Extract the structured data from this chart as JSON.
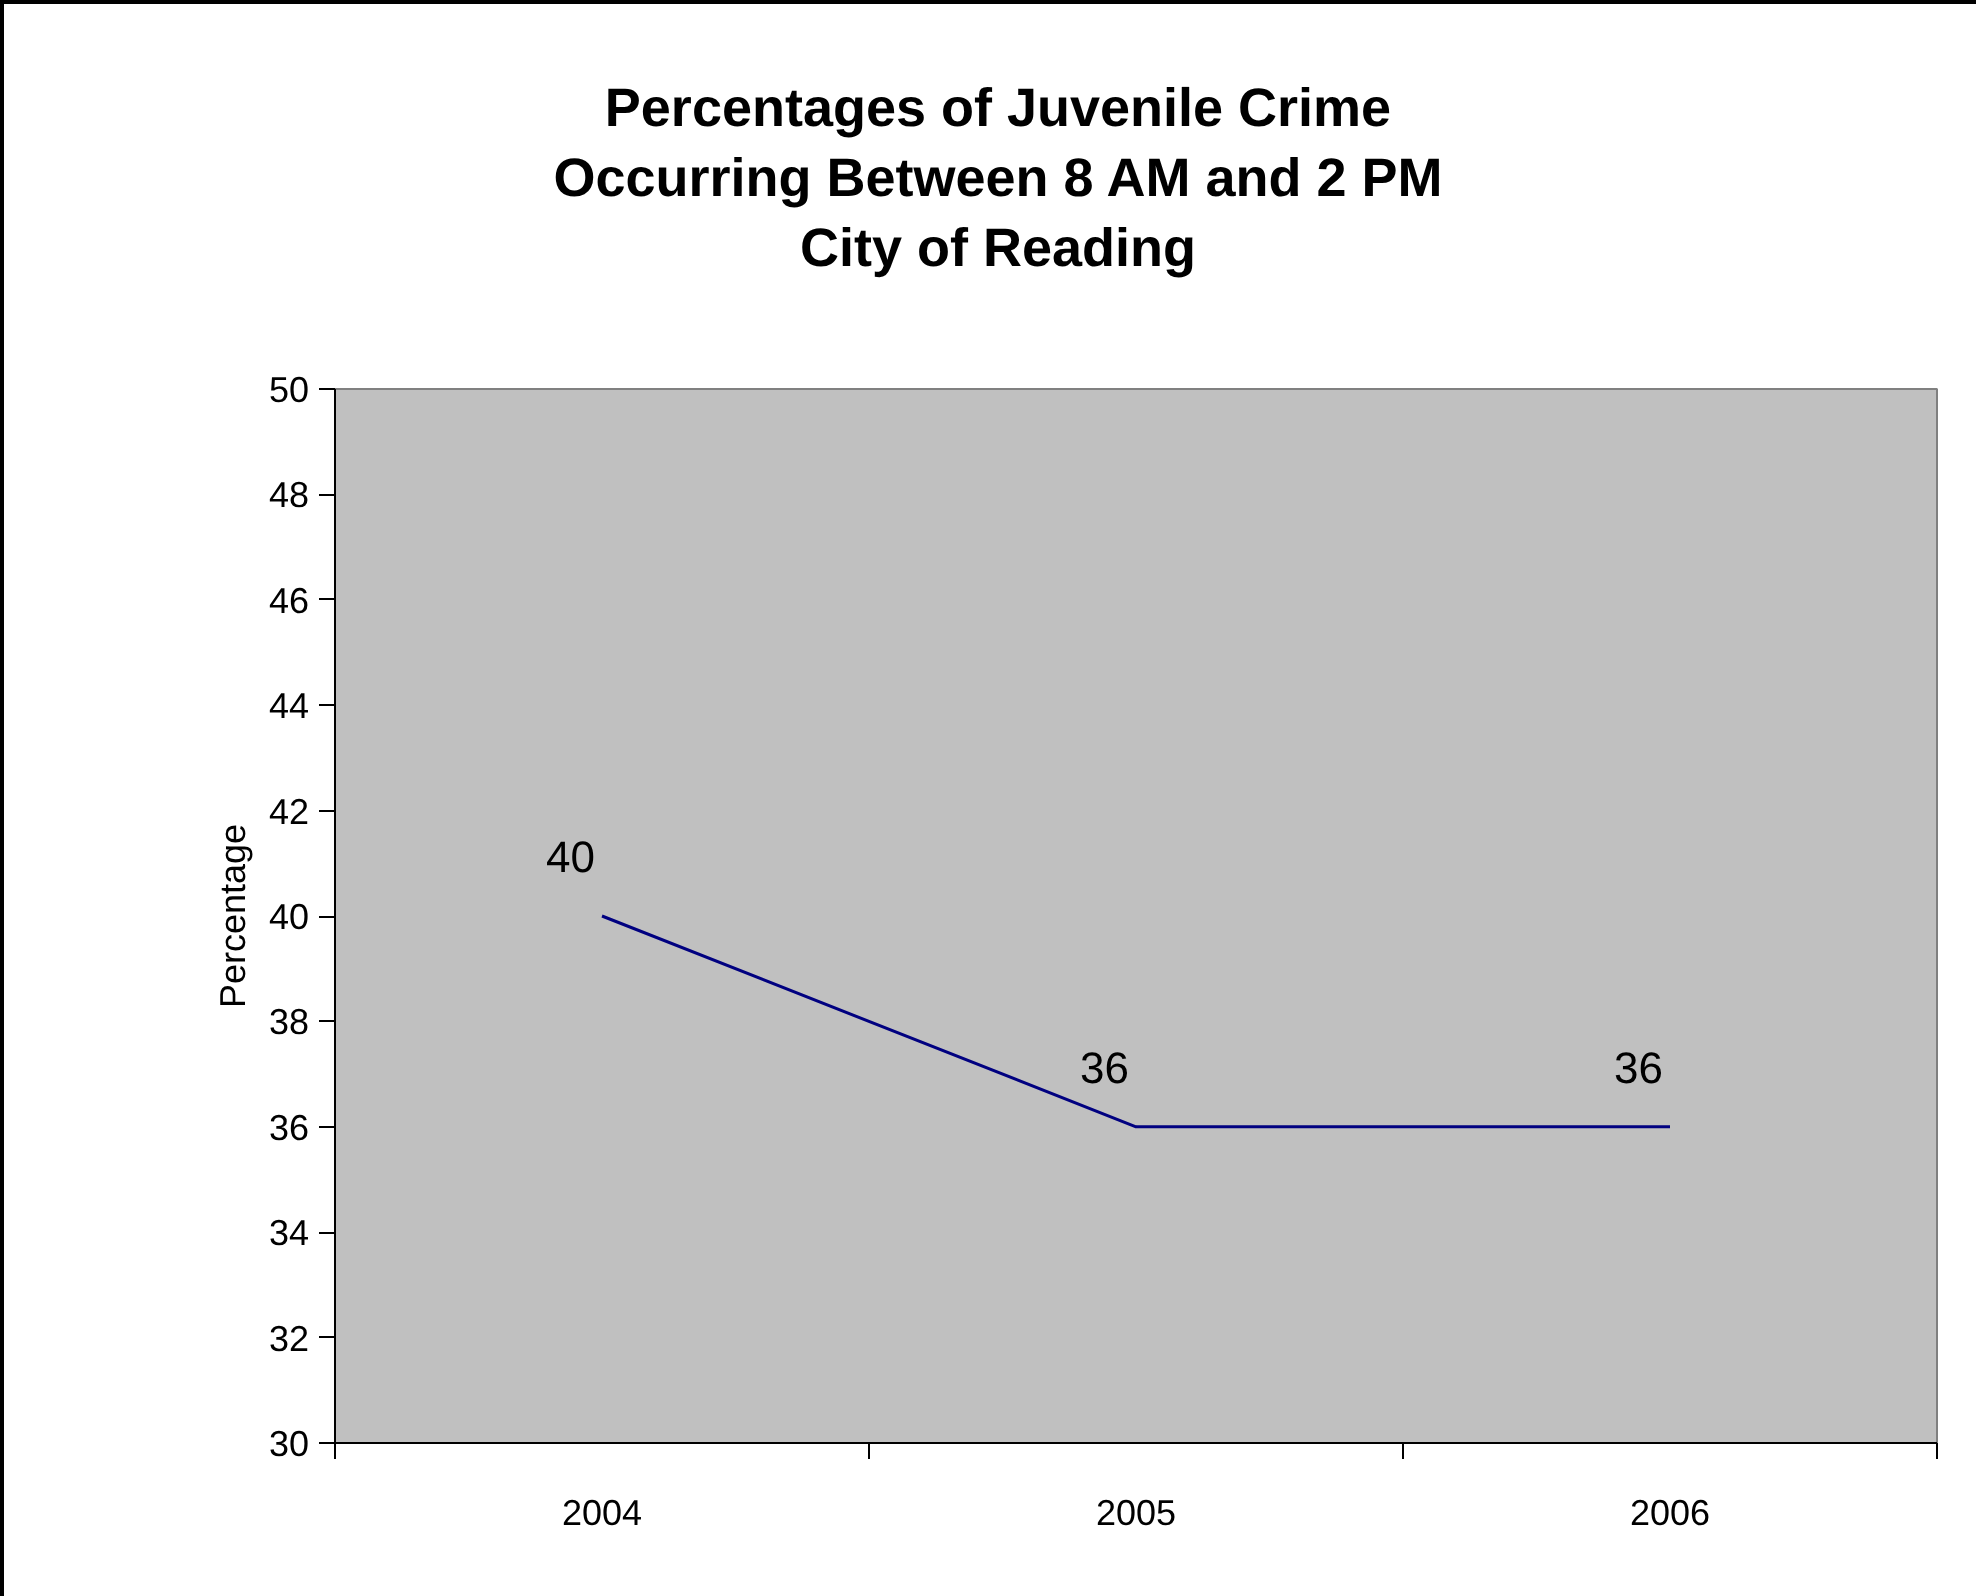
{
  "chart_data": {
    "type": "line",
    "title": "Percentages of Juvenile Crime\nOccurring Between 8 AM and 2 PM\nCity of Reading",
    "ylabel": "Percentage",
    "categories": [
      "2004",
      "2005",
      "2006"
    ],
    "series": [
      {
        "color": "#000080",
        "values": [
          40,
          36,
          36
        ]
      }
    ],
    "ylim": [
      30,
      50
    ],
    "yticks": [
      30,
      32,
      34,
      36,
      38,
      40,
      42,
      44,
      46,
      48,
      50
    ],
    "data_labels": true,
    "grid": false,
    "marker": "none",
    "line_style": "solid"
  }
}
